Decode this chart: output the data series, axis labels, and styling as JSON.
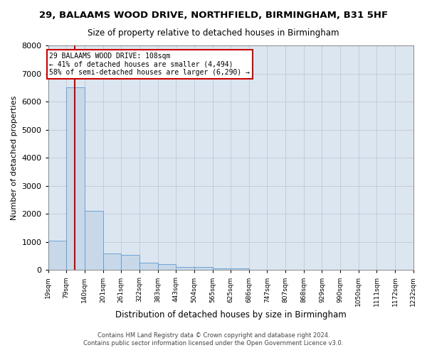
{
  "title1": "29, BALAAMS WOOD DRIVE, NORTHFIELD, BIRMINGHAM, B31 5HF",
  "title2": "Size of property relative to detached houses in Birmingham",
  "xlabel": "Distribution of detached houses by size in Birmingham",
  "ylabel": "Number of detached properties",
  "footer1": "Contains HM Land Registry data © Crown copyright and database right 2024.",
  "footer2": "Contains public sector information licensed under the Open Government Licence v3.0.",
  "annotation_line1": "29 BALAAMS WOOD DRIVE: 108sqm",
  "annotation_line2": "← 41% of detached houses are smaller (4,494)",
  "annotation_line3": "58% of semi-detached houses are larger (6,290) →",
  "property_size": 108,
  "bin_edges": [
    19,
    79,
    140,
    201,
    261,
    322,
    383,
    443,
    504,
    565,
    625,
    686,
    747,
    807,
    868,
    929,
    990,
    1050,
    1111,
    1172,
    1232
  ],
  "bar_heights": [
    1050,
    6500,
    2100,
    600,
    550,
    250,
    200,
    120,
    100,
    60,
    50,
    10,
    5,
    3,
    2,
    1,
    1,
    0,
    0,
    0
  ],
  "bar_color": "#c8d8e8",
  "bar_edge_color": "#5b9bd5",
  "vline_color": "#cc0000",
  "vline_x": 108,
  "annotation_box_color": "#cc0000",
  "ylim": [
    0,
    8000
  ],
  "yticks": [
    0,
    1000,
    2000,
    3000,
    4000,
    5000,
    6000,
    7000,
    8000
  ],
  "grid_color": "#c0c8d8",
  "bg_color": "#dce6f0"
}
